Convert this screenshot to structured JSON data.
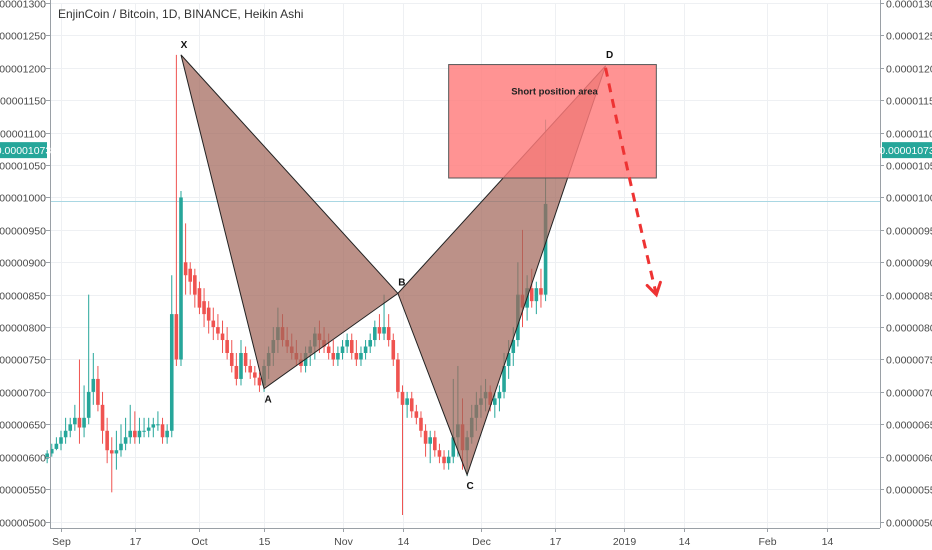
{
  "chart_data": {
    "type": "candlestick",
    "title": "EnjinCoin / Bitcoin, 1D, BINANCE, Heikin Ashi",
    "ylim": [
      4.9e-06,
      1.3e-05
    ],
    "y_ticks": [
      "0.00000500",
      "0.00000550",
      "0.00000600",
      "0.00000650",
      "0.00000700",
      "0.00000750",
      "0.00000800",
      "0.00000850",
      "0.00000900",
      "0.00000950",
      "0.00001000",
      "0.00001050",
      "0.00001100",
      "0.00001150",
      "0.00001200",
      "0.00001250",
      "0.00001300"
    ],
    "x_ticks": [
      {
        "label": "Sep",
        "date": "2018-09-01"
      },
      {
        "label": "17",
        "date": "2018-09-17"
      },
      {
        "label": "Oct",
        "date": "2018-10-01"
      },
      {
        "label": "15",
        "date": "2018-10-15"
      },
      {
        "label": "Nov",
        "date": "2018-11-01"
      },
      {
        "label": "14",
        "date": "2018-11-14"
      },
      {
        "label": "Dec",
        "date": "2018-12-01"
      },
      {
        "label": "17",
        "date": "2018-12-17"
      },
      {
        "label": "2019",
        "date": "2019-01-01"
      },
      {
        "label": "14",
        "date": "2019-01-14"
      },
      {
        "label": "Feb",
        "date": "2019-02-01"
      },
      {
        "label": "14",
        "date": "2019-02-14"
      }
    ],
    "current_price": "0.00001073",
    "horizontal_line": 9.95e-06,
    "colors": {
      "up": "#26a69a",
      "down": "#ef5350",
      "pattern": "#a2665a",
      "box": "#ff7b7b",
      "arrow": "#ee3333",
      "price_tag": "#26a69a",
      "hline": "#a9d7e3"
    },
    "pattern_points": [
      {
        "label": "X",
        "date": "2018-09-27",
        "price": 1.22e-05
      },
      {
        "label": "A",
        "date": "2018-10-15",
        "price": 7.05e-06
      },
      {
        "label": "B",
        "date": "2018-11-13",
        "price": 8.52e-06
      },
      {
        "label": "C",
        "date": "2018-11-28",
        "price": 5.72e-06
      },
      {
        "label": "D",
        "date": "2018-12-28",
        "price": 1.203e-05
      }
    ],
    "short_area": {
      "label": "Short position area",
      "date_from": "2018-11-24",
      "date_to": "2019-01-08",
      "price_low": 1.03e-05,
      "price_high": 1.205e-05
    },
    "projection": [
      {
        "date": "2018-12-28",
        "price": 1.2e-05
      },
      {
        "date": "2019-01-02",
        "price": 1.03e-05
      },
      {
        "date": "2019-01-08",
        "price": 8.5e-06
      }
    ],
    "series": [
      {
        "date": "2018-08-29",
        "open": 5.97e-06,
        "high": 6.1e-06,
        "low": 5.9e-06,
        "close": 6.05e-06
      },
      {
        "date": "2018-08-30",
        "open": 6.05e-06,
        "high": 6.2e-06,
        "low": 6e-06,
        "close": 6.12e-06
      },
      {
        "date": "2018-08-31",
        "open": 6.12e-06,
        "high": 6.3e-06,
        "low": 6.1e-06,
        "close": 6.2e-06
      },
      {
        "date": "2018-09-01",
        "open": 6.2e-06,
        "high": 6.4e-06,
        "low": 6.1e-06,
        "close": 6.3e-06
      },
      {
        "date": "2018-09-02",
        "open": 6.3e-06,
        "high": 6.6e-06,
        "low": 6.2e-06,
        "close": 6.4e-06
      },
      {
        "date": "2018-09-03",
        "open": 6.4e-06,
        "high": 6.6e-06,
        "low": 6.3e-06,
        "close": 6.5e-06
      },
      {
        "date": "2018-09-04",
        "open": 6.5e-06,
        "high": 6.8e-06,
        "low": 6.4e-06,
        "close": 6.6e-06
      },
      {
        "date": "2018-09-05",
        "open": 6.6e-06,
        "high": 7.5e-06,
        "low": 6.2e-06,
        "close": 6.45e-06
      },
      {
        "date": "2018-09-06",
        "open": 6.45e-06,
        "high": 7.1e-06,
        "low": 6.3e-06,
        "close": 6.6e-06
      },
      {
        "date": "2018-09-07",
        "open": 6.6e-06,
        "high": 8.5e-06,
        "low": 6.5e-06,
        "close": 7e-06
      },
      {
        "date": "2018-09-08",
        "open": 7e-06,
        "high": 7.6e-06,
        "low": 6.8e-06,
        "close": 7.2e-06
      },
      {
        "date": "2018-09-09",
        "open": 7.2e-06,
        "high": 7.4e-06,
        "low": 6.7e-06,
        "close": 6.8e-06
      },
      {
        "date": "2018-09-10",
        "open": 6.8e-06,
        "high": 7e-06,
        "low": 6.2e-06,
        "close": 6.4e-06
      },
      {
        "date": "2018-09-11",
        "open": 6.4e-06,
        "high": 6.6e-06,
        "low": 5.9e-06,
        "close": 6.1e-06
      },
      {
        "date": "2018-09-12",
        "open": 6.1e-06,
        "high": 6.3e-06,
        "low": 5.45e-06,
        "close": 6.05e-06
      },
      {
        "date": "2018-09-13",
        "open": 6.05e-06,
        "high": 6.4e-06,
        "low": 5.8e-06,
        "close": 6.1e-06
      },
      {
        "date": "2018-09-14",
        "open": 6.1e-06,
        "high": 6.5e-06,
        "low": 6e-06,
        "close": 6.2e-06
      },
      {
        "date": "2018-09-15",
        "open": 6.2e-06,
        "high": 6.6e-06,
        "low": 6.1e-06,
        "close": 6.3e-06
      },
      {
        "date": "2018-09-16",
        "open": 6.3e-06,
        "high": 6.8e-06,
        "low": 6.2e-06,
        "close": 6.4e-06
      },
      {
        "date": "2018-09-17",
        "open": 6.4e-06,
        "high": 6.7e-06,
        "low": 6.2e-06,
        "close": 6.3e-06
      },
      {
        "date": "2018-09-18",
        "open": 6.3e-06,
        "high": 6.6e-06,
        "low": 6.2e-06,
        "close": 6.4e-06
      },
      {
        "date": "2018-09-19",
        "open": 6.4e-06,
        "high": 6.6e-06,
        "low": 6.3e-06,
        "close": 6.4e-06
      },
      {
        "date": "2018-09-20",
        "open": 6.4e-06,
        "high": 6.6e-06,
        "low": 6.3e-06,
        "close": 6.45e-06
      },
      {
        "date": "2018-09-21",
        "open": 6.45e-06,
        "high": 6.6e-06,
        "low": 6.3e-06,
        "close": 6.5e-06
      },
      {
        "date": "2018-09-22",
        "open": 6.5e-06,
        "high": 6.7e-06,
        "low": 6.4e-06,
        "close": 6.5e-06
      },
      {
        "date": "2018-09-23",
        "open": 6.5e-06,
        "high": 6.6e-06,
        "low": 6.2e-06,
        "close": 6.3e-06
      },
      {
        "date": "2018-09-24",
        "open": 6.3e-06,
        "high": 6.5e-06,
        "low": 6.2e-06,
        "close": 6.4e-06
      },
      {
        "date": "2018-09-25",
        "open": 6.4e-06,
        "high": 8.8e-06,
        "low": 6.3e-06,
        "close": 8.2e-06
      },
      {
        "date": "2018-09-26",
        "open": 8.2e-06,
        "high": 1.22e-05,
        "low": 7.4e-06,
        "close": 7.5e-06
      },
      {
        "date": "2018-09-27",
        "open": 7.5e-06,
        "high": 1.01e-05,
        "low": 7.4e-06,
        "close": 1e-05
      },
      {
        "date": "2018-09-28",
        "open": 9e-06,
        "high": 9.6e-06,
        "low": 8.5e-06,
        "close": 8.8e-06
      },
      {
        "date": "2018-09-29",
        "open": 8.9e-06,
        "high": 9e-06,
        "low": 8.5e-06,
        "close": 8.7e-06
      },
      {
        "date": "2018-09-30",
        "open": 8.8e-06,
        "high": 8.9e-06,
        "low": 8.3e-06,
        "close": 8.5e-06
      },
      {
        "date": "2018-10-01",
        "open": 8.6e-06,
        "high": 8.7e-06,
        "low": 8.2e-06,
        "close": 8.3e-06
      },
      {
        "date": "2018-10-02",
        "open": 8.4e-06,
        "high": 8.6e-06,
        "low": 8e-06,
        "close": 8.2e-06
      },
      {
        "date": "2018-10-03",
        "open": 8.3e-06,
        "high": 8.4e-06,
        "low": 7.9e-06,
        "close": 8.1e-06
      },
      {
        "date": "2018-10-04",
        "open": 8.1e-06,
        "high": 8.3e-06,
        "low": 7.8e-06,
        "close": 8e-06
      },
      {
        "date": "2018-10-05",
        "open": 8e-06,
        "high": 8.2e-06,
        "low": 7.8e-06,
        "close": 7.9e-06
      },
      {
        "date": "2018-10-06",
        "open": 7.9e-06,
        "high": 8.1e-06,
        "low": 7.6e-06,
        "close": 7.8e-06
      },
      {
        "date": "2018-10-07",
        "open": 7.8e-06,
        "high": 8e-06,
        "low": 7.5e-06,
        "close": 7.6e-06
      },
      {
        "date": "2018-10-08",
        "open": 7.6e-06,
        "high": 7.8e-06,
        "low": 7.3e-06,
        "close": 7.4e-06
      },
      {
        "date": "2018-10-09",
        "open": 7.4e-06,
        "high": 7.6e-06,
        "low": 7.1e-06,
        "close": 7.2e-06
      },
      {
        "date": "2018-10-10",
        "open": 7.2e-06,
        "high": 7.8e-06,
        "low": 7.1e-06,
        "close": 7.6e-06
      },
      {
        "date": "2018-10-11",
        "open": 7.6e-06,
        "high": 7.7e-06,
        "low": 7.3e-06,
        "close": 7.4e-06
      },
      {
        "date": "2018-10-12",
        "open": 7.4e-06,
        "high": 7.5e-06,
        "low": 7.2e-06,
        "close": 7.3e-06
      },
      {
        "date": "2018-10-13",
        "open": 7.3e-06,
        "high": 7.4e-06,
        "low": 7.1e-06,
        "close": 7.22e-06
      },
      {
        "date": "2018-10-14",
        "open": 7.22e-06,
        "high": 7.3e-06,
        "low": 7e-06,
        "close": 7.1e-06
      },
      {
        "date": "2018-10-15",
        "open": 7.1e-06,
        "high": 7.5e-06,
        "low": 7e-06,
        "close": 7.4e-06
      },
      {
        "date": "2018-10-16",
        "open": 7.4e-06,
        "high": 7.7e-06,
        "low": 7.2e-06,
        "close": 7.6e-06
      },
      {
        "date": "2018-10-17",
        "open": 7.6e-06,
        "high": 8e-06,
        "low": 7.4e-06,
        "close": 7.8e-06
      },
      {
        "date": "2018-10-18",
        "open": 7.8e-06,
        "high": 8.3e-06,
        "low": 7.6e-06,
        "close": 8e-06
      },
      {
        "date": "2018-10-19",
        "open": 8e-06,
        "high": 8.2e-06,
        "low": 7.7e-06,
        "close": 7.8e-06
      },
      {
        "date": "2018-10-20",
        "open": 7.8e-06,
        "high": 8e-06,
        "low": 7.6e-06,
        "close": 7.7e-06
      },
      {
        "date": "2018-10-21",
        "open": 7.7e-06,
        "high": 7.9e-06,
        "low": 7.5e-06,
        "close": 7.6e-06
      },
      {
        "date": "2018-10-22",
        "open": 7.6e-06,
        "high": 7.8e-06,
        "low": 7.4e-06,
        "close": 7.5e-06
      },
      {
        "date": "2018-10-23",
        "open": 7.5e-06,
        "high": 7.6e-06,
        "low": 7.3e-06,
        "close": 7.4e-06
      },
      {
        "date": "2018-10-24",
        "open": 7.4e-06,
        "high": 7.7e-06,
        "low": 7.3e-06,
        "close": 7.6e-06
      },
      {
        "date": "2018-10-25",
        "open": 7.6e-06,
        "high": 7.8e-06,
        "low": 7.4e-06,
        "close": 7.7e-06
      },
      {
        "date": "2018-10-26",
        "open": 7.7e-06,
        "high": 8e-06,
        "low": 7.5e-06,
        "close": 7.9e-06
      },
      {
        "date": "2018-10-27",
        "open": 7.9e-06,
        "high": 8.1e-06,
        "low": 7.6e-06,
        "close": 7.8e-06
      },
      {
        "date": "2018-10-28",
        "open": 7.8e-06,
        "high": 8e-06,
        "low": 7.6e-06,
        "close": 7.7e-06
      },
      {
        "date": "2018-10-29",
        "open": 7.7e-06,
        "high": 7.9e-06,
        "low": 7.5e-06,
        "close": 7.6e-06
      },
      {
        "date": "2018-10-30",
        "open": 7.6e-06,
        "high": 7.8e-06,
        "low": 7.4e-06,
        "close": 7.5e-06
      },
      {
        "date": "2018-10-31",
        "open": 7.5e-06,
        "high": 7.7e-06,
        "low": 7.4e-06,
        "close": 7.6e-06
      },
      {
        "date": "2018-11-01",
        "open": 7.6e-06,
        "high": 7.8e-06,
        "low": 7.5e-06,
        "close": 7.7e-06
      },
      {
        "date": "2018-11-02",
        "open": 7.7e-06,
        "high": 7.9e-06,
        "low": 7.6e-06,
        "close": 7.8e-06
      },
      {
        "date": "2018-11-03",
        "open": 7.8e-06,
        "high": 7.9e-06,
        "low": 7.5e-06,
        "close": 7.6e-06
      },
      {
        "date": "2018-11-04",
        "open": 7.6e-06,
        "high": 7.8e-06,
        "low": 7.4e-06,
        "close": 7.5e-06
      },
      {
        "date": "2018-11-05",
        "open": 7.5e-06,
        "high": 7.7e-06,
        "low": 7.4e-06,
        "close": 7.6e-06
      },
      {
        "date": "2018-11-06",
        "open": 7.6e-06,
        "high": 7.8e-06,
        "low": 7.5e-06,
        "close": 7.7e-06
      },
      {
        "date": "2018-11-07",
        "open": 7.7e-06,
        "high": 7.9e-06,
        "low": 7.6e-06,
        "close": 7.8e-06
      },
      {
        "date": "2018-11-08",
        "open": 7.8e-06,
        "high": 8.1e-06,
        "low": 7.7e-06,
        "close": 8e-06
      },
      {
        "date": "2018-11-09",
        "open": 8e-06,
        "high": 8.2e-06,
        "low": 7.8e-06,
        "close": 7.9e-06
      },
      {
        "date": "2018-11-10",
        "open": 7.9e-06,
        "high": 8.5e-06,
        "low": 7.8e-06,
        "close": 8e-06
      },
      {
        "date": "2018-11-11",
        "open": 8e-06,
        "high": 8.2e-06,
        "low": 7.7e-06,
        "close": 7.8e-06
      },
      {
        "date": "2018-11-12",
        "open": 7.8e-06,
        "high": 7.9e-06,
        "low": 7.4e-06,
        "close": 7.5e-06
      },
      {
        "date": "2018-11-13",
        "open": 7.5e-06,
        "high": 7.6e-06,
        "low": 6.9e-06,
        "close": 7e-06
      },
      {
        "date": "2018-11-14",
        "open": 7e-06,
        "high": 7.1e-06,
        "low": 5.1e-06,
        "close": 6.8e-06
      },
      {
        "date": "2018-11-15",
        "open": 6.8e-06,
        "high": 7e-06,
        "low": 6.6e-06,
        "close": 6.9e-06
      },
      {
        "date": "2018-11-16",
        "open": 6.9e-06,
        "high": 7e-06,
        "low": 6.6e-06,
        "close": 6.7e-06
      },
      {
        "date": "2018-11-17",
        "open": 6.7e-06,
        "high": 6.8e-06,
        "low": 6.5e-06,
        "close": 6.6e-06
      },
      {
        "date": "2018-11-18",
        "open": 6.6e-06,
        "high": 6.7e-06,
        "low": 6.3e-06,
        "close": 6.4e-06
      },
      {
        "date": "2018-11-19",
        "open": 6.4e-06,
        "high": 6.5e-06,
        "low": 6e-06,
        "close": 6.2e-06
      },
      {
        "date": "2018-11-20",
        "open": 6.2e-06,
        "high": 6.4e-06,
        "low": 5.9e-06,
        "close": 6.3e-06
      },
      {
        "date": "2018-11-21",
        "open": 6.3e-06,
        "high": 6.4e-06,
        "low": 6e-06,
        "close": 6.1e-06
      },
      {
        "date": "2018-11-22",
        "open": 6.1e-06,
        "high": 6.2e-06,
        "low": 5.9e-06,
        "close": 6e-06
      },
      {
        "date": "2018-11-23",
        "open": 6e-06,
        "high": 6.1e-06,
        "low": 5.8e-06,
        "close": 5.9e-06
      },
      {
        "date": "2018-11-24",
        "open": 5.9e-06,
        "high": 6.1e-06,
        "low": 5.8e-06,
        "close": 6e-06
      },
      {
        "date": "2018-11-25",
        "open": 6e-06,
        "high": 7.2e-06,
        "low": 5.9e-06,
        "close": 6.3e-06
      },
      {
        "date": "2018-11-26",
        "open": 6.3e-06,
        "high": 7.4e-06,
        "low": 6e-06,
        "close": 6.5e-06
      },
      {
        "date": "2018-11-27",
        "open": 6.5e-06,
        "high": 6.9e-06,
        "low": 5.8e-06,
        "close": 6.1e-06
      },
      {
        "date": "2018-11-28",
        "open": 6.1e-06,
        "high": 6.4e-06,
        "low": 5.7e-06,
        "close": 6.3e-06
      },
      {
        "date": "2018-11-29",
        "open": 6.3e-06,
        "high": 6.8e-06,
        "low": 6.2e-06,
        "close": 6.6e-06
      },
      {
        "date": "2018-11-30",
        "open": 6.6e-06,
        "high": 7e-06,
        "low": 6.4e-06,
        "close": 6.8e-06
      },
      {
        "date": "2018-12-01",
        "open": 6.8e-06,
        "high": 7.1e-06,
        "low": 6.6e-06,
        "close": 6.9e-06
      },
      {
        "date": "2018-12-02",
        "open": 6.9e-06,
        "high": 7.2e-06,
        "low": 6.7e-06,
        "close": 7e-06
      },
      {
        "date": "2018-12-03",
        "open": 7e-06,
        "high": 7.1e-06,
        "low": 6.7e-06,
        "close": 6.8e-06
      },
      {
        "date": "2018-12-04",
        "open": 6.8e-06,
        "high": 7e-06,
        "low": 6.6e-06,
        "close": 6.9e-06
      },
      {
        "date": "2018-12-05",
        "open": 6.9e-06,
        "high": 7.1e-06,
        "low": 6.7e-06,
        "close": 7e-06
      },
      {
        "date": "2018-12-06",
        "open": 7e-06,
        "high": 7.6e-06,
        "low": 6.9e-06,
        "close": 7.4e-06
      },
      {
        "date": "2018-12-07",
        "open": 7.4e-06,
        "high": 7.8e-06,
        "low": 7.2e-06,
        "close": 7.6e-06
      },
      {
        "date": "2018-12-08",
        "open": 7.6e-06,
        "high": 8e-06,
        "low": 7.4e-06,
        "close": 7.8e-06
      },
      {
        "date": "2018-12-09",
        "open": 7.8e-06,
        "high": 9e-06,
        "low": 7.7e-06,
        "close": 8.5e-06
      },
      {
        "date": "2018-12-10",
        "open": 8.5e-06,
        "high": 9.5e-06,
        "low": 8e-06,
        "close": 8.3e-06
      },
      {
        "date": "2018-12-11",
        "open": 8.3e-06,
        "high": 8.8e-06,
        "low": 8.1e-06,
        "close": 8.6e-06
      },
      {
        "date": "2018-12-12",
        "open": 8.6e-06,
        "high": 8.9e-06,
        "low": 8.3e-06,
        "close": 8.4e-06
      },
      {
        "date": "2018-12-13",
        "open": 8.4e-06,
        "high": 8.7e-06,
        "low": 8.2e-06,
        "close": 8.6e-06
      },
      {
        "date": "2018-12-14",
        "open": 8.6e-06,
        "high": 8.9e-06,
        "low": 8.3e-06,
        "close": 8.5e-06
      },
      {
        "date": "2018-12-15",
        "open": 8.5e-06,
        "high": 1.12e-05,
        "low": 8.4e-06,
        "close": 9.9e-06
      }
    ]
  }
}
